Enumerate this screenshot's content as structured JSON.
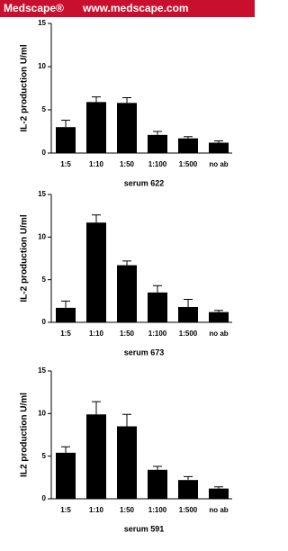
{
  "header": {
    "brand": "Medscape®",
    "url": "www.medscape.com"
  },
  "chart_data": [
    {
      "type": "bar",
      "y_label": "IL-2 production U/ml",
      "x_label": "serum 622",
      "categories": [
        "1:5",
        "1:10",
        "1:50",
        "1:100",
        "1:500",
        "no ab"
      ],
      "values": [
        3.0,
        5.9,
        5.8,
        2.1,
        1.7,
        1.2
      ],
      "errors": [
        0.8,
        0.6,
        0.6,
        0.4,
        0.2,
        0.2
      ],
      "color": "#000000",
      "ylim": [
        0,
        15
      ],
      "yticks": [
        0,
        5,
        10,
        15
      ]
    },
    {
      "type": "bar",
      "y_label": "IL-2 production U/ml",
      "x_label": "serum 673",
      "categories": [
        "1:5",
        "1:10",
        "1:50",
        "1:100",
        "1:500",
        "no ab"
      ],
      "values": [
        1.7,
        11.7,
        6.7,
        3.5,
        1.8,
        1.2
      ],
      "errors": [
        0.8,
        0.9,
        0.5,
        0.8,
        0.9,
        0.2
      ],
      "color": "#000000",
      "ylim": [
        0,
        15
      ],
      "yticks": [
        0,
        5,
        10,
        15
      ]
    },
    {
      "type": "bar",
      "y_label": "IL2 production U/ml",
      "x_label": "serum 591",
      "categories": [
        "1:5",
        "1:10",
        "1:50",
        "1:100",
        "1:500",
        "no ab"
      ],
      "values": [
        5.4,
        9.9,
        8.5,
        3.4,
        2.2,
        1.2
      ],
      "errors": [
        0.7,
        1.5,
        1.4,
        0.4,
        0.4,
        0.2
      ],
      "color": "#000000",
      "ylim": [
        0,
        15
      ],
      "yticks": [
        0,
        5,
        10,
        15
      ]
    }
  ]
}
